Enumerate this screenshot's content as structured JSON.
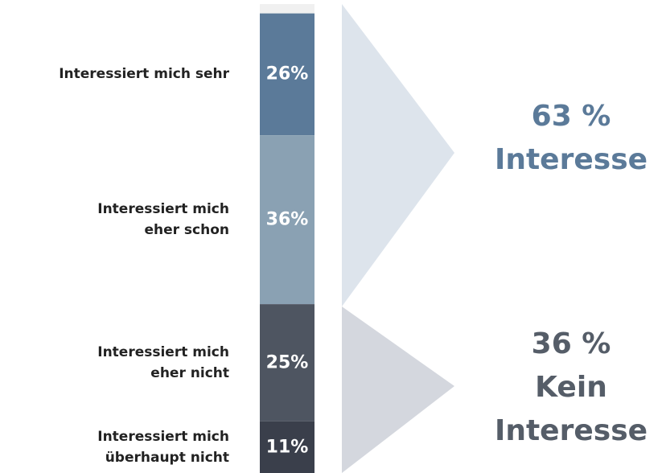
{
  "chart_data": {
    "type": "stacked-bar",
    "categories": [
      null,
      "Interessiert mich sehr",
      "Interessiert mich\neher schon",
      "Interessiert mich\neher nicht",
      "Interessiert mich\nüberhaupt nicht"
    ],
    "values": [
      2,
      26,
      36,
      25,
      11
    ],
    "value_labels": [
      null,
      "26%",
      "36%",
      "25%",
      "11%"
    ],
    "colors": [
      "#f0f0f0",
      "#5b7a99",
      "#8aa1b3",
      "#4e5561",
      "#3a3f4b"
    ],
    "annotations": [
      {
        "text": "63 %\nInteresse",
        "color": "#5b7a99"
      },
      {
        "text": "36 %\nKein\nInteresse",
        "color": "#555d68"
      }
    ]
  }
}
